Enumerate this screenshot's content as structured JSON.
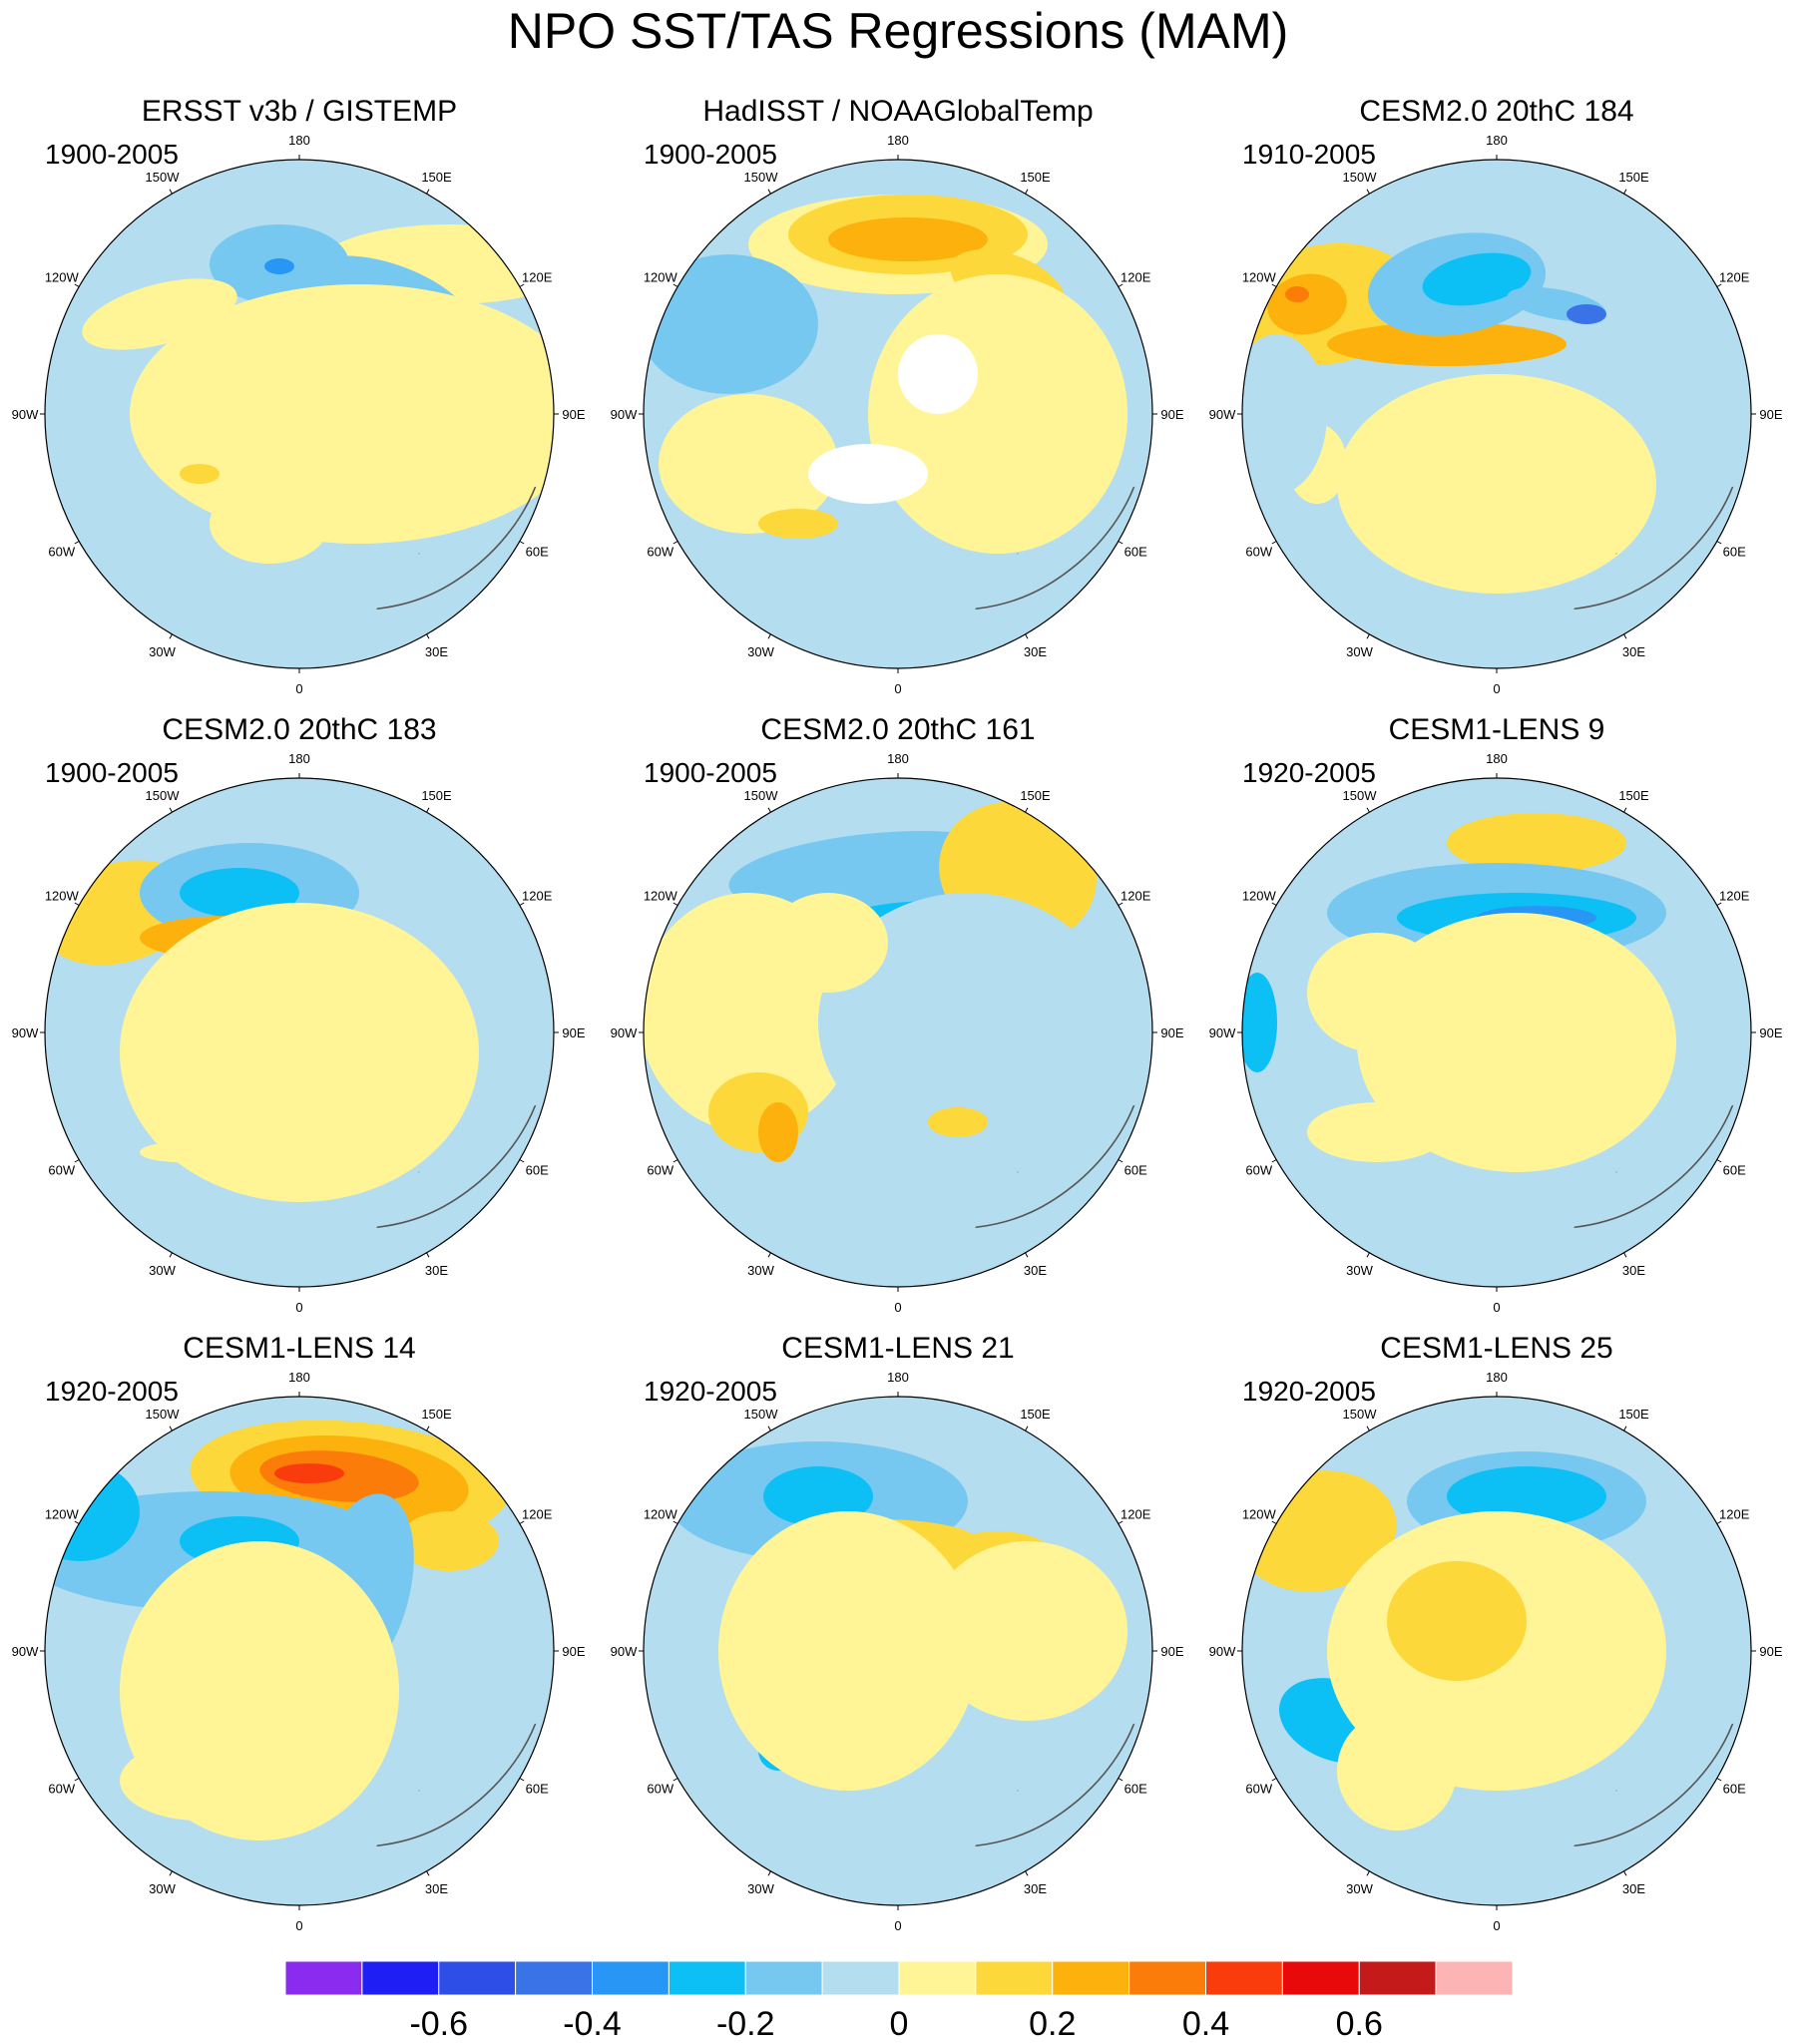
{
  "title": "NPO SST/TAS Regressions (MAM)",
  "longitude_labels": [
    "180",
    "150E",
    "120E",
    "90E",
    "60E",
    "30E",
    "0",
    "30W",
    "60W",
    "90W",
    "120W",
    "150W"
  ],
  "colors": {
    "ocean_neg": "#b5ddf0",
    "land_pos": "#fff597",
    "coast": "#555555",
    "missing": "#ffffff"
  },
  "panels": [
    {
      "id": "ersst",
      "title": "ERSST v3b / GISTEMP",
      "period": "1900-2005"
    },
    {
      "id": "hadisst",
      "title": "HadISST / NOAAGlobalTemp",
      "period": "1900-2005"
    },
    {
      "id": "cesm2-184",
      "title": "CESM2.0 20thC 184",
      "period": "1910-2005"
    },
    {
      "id": "cesm2-183",
      "title": "CESM2.0 20thC 183",
      "period": "1900-2005"
    },
    {
      "id": "cesm2-161",
      "title": "CESM2.0 20thC 161",
      "period": "1900-2005"
    },
    {
      "id": "lens9",
      "title": "CESM1-LENS 9",
      "period": "1920-2005"
    },
    {
      "id": "lens14",
      "title": "CESM1-LENS 14",
      "period": "1920-2005"
    },
    {
      "id": "lens21",
      "title": "CESM1-LENS 21",
      "period": "1920-2005"
    },
    {
      "id": "lens25",
      "title": "CESM1-LENS 25",
      "period": "1920-2005"
    }
  ],
  "colorbar": {
    "colors": [
      "#8c2bf0",
      "#1e1ef5",
      "#2e4ee8",
      "#3a73e8",
      "#2896f5",
      "#0cc0f5",
      "#76c8f0",
      "#b5ddf0",
      "#fff597",
      "#fcd83a",
      "#fcb10c",
      "#fc7c0a",
      "#fa3c0c",
      "#e80a0a",
      "#c41a1a",
      "#fcb4b4"
    ],
    "tick_labels": [
      "-0.6",
      "-0.4",
      "-0.2",
      "0",
      "0.2",
      "0.4",
      "0.6"
    ]
  }
}
